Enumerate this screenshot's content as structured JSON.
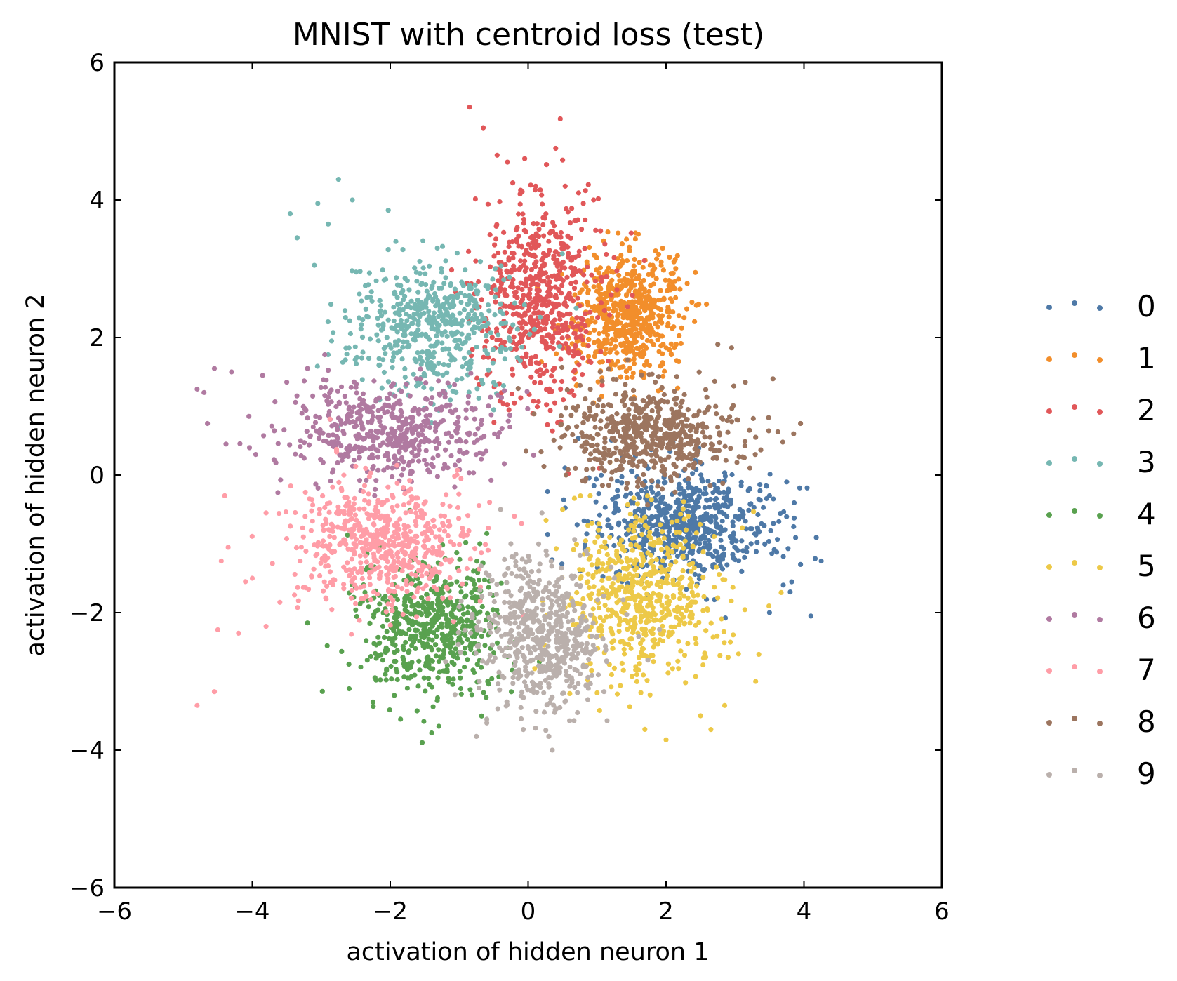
{
  "chart_data": {
    "type": "scatter",
    "title": "MNIST with centroid loss (test)",
    "xlabel": "activation of hidden neuron 1",
    "ylabel": "activation of hidden neuron 2",
    "xlim": [
      -6,
      6
    ],
    "ylim": [
      -6,
      6
    ],
    "xticks": [
      -6,
      -4,
      -2,
      0,
      2,
      4,
      6
    ],
    "yticks": [
      -6,
      -4,
      -2,
      0,
      2,
      4,
      6
    ],
    "xtick_labels": [
      "−6",
      "−4",
      "−2",
      "0",
      "2",
      "4",
      "6"
    ],
    "ytick_labels": [
      "−6",
      "−4",
      "−2",
      "0",
      "2",
      "4",
      "6"
    ],
    "grid": false,
    "legend_position": "right",
    "series": [
      {
        "name": "0",
        "color": "#4e79a7",
        "center": [
          2.25,
          -0.7
        ],
        "spread": [
          0.65,
          0.38
        ],
        "count": 650,
        "outliers": [
          [
            4.1,
            -2.05
          ],
          [
            3.8,
            -1.7
          ],
          [
            3.95,
            -1.3
          ],
          [
            4.25,
            -1.25
          ],
          [
            3.75,
            -0.1
          ],
          [
            3.5,
            -0.3
          ],
          [
            3.85,
            -0.75
          ],
          [
            3.7,
            -1.6
          ],
          [
            3.5,
            -2.0
          ]
        ]
      },
      {
        "name": "1",
        "color": "#f28e2b",
        "center": [
          1.45,
          2.35
        ],
        "spread": [
          0.38,
          0.45
        ],
        "count": 620,
        "outliers": [
          [
            1.95,
            3.3
          ],
          [
            2.1,
            2.75
          ],
          [
            0.7,
            1.3
          ],
          [
            0.95,
            1.05
          ],
          [
            1.3,
            1.65
          ]
        ]
      },
      {
        "name": "2",
        "color": "#e15759",
        "center": [
          0.15,
          2.6
        ],
        "spread": [
          0.45,
          0.75
        ],
        "count": 620,
        "outliers": [
          [
            -0.85,
            5.35
          ],
          [
            -0.65,
            5.05
          ],
          [
            -0.45,
            4.65
          ],
          [
            -0.3,
            4.55
          ],
          [
            -0.05,
            4.6
          ],
          [
            0.4,
            4.75
          ],
          [
            0.5,
            4.58
          ],
          [
            0.8,
            3.95
          ],
          [
            0.95,
            4.0
          ],
          [
            1.05,
            3.55
          ],
          [
            0.7,
            3.7
          ]
        ]
      },
      {
        "name": "3",
        "color": "#76b7b2",
        "center": [
          -1.4,
          2.2
        ],
        "spread": [
          0.6,
          0.5
        ],
        "count": 520,
        "outliers": [
          [
            -2.75,
            4.3
          ],
          [
            -3.05,
            3.95
          ],
          [
            -3.45,
            3.8
          ],
          [
            -2.55,
            4.0
          ],
          [
            -3.35,
            3.45
          ],
          [
            -2.9,
            3.65
          ],
          [
            -3.1,
            3.05
          ],
          [
            -2.85,
            1.95
          ],
          [
            -2.9,
            1.75
          ],
          [
            -0.5,
            0.95
          ]
        ]
      },
      {
        "name": "4",
        "color": "#59a14f",
        "center": [
          -1.4,
          -2.2
        ],
        "spread": [
          0.5,
          0.5
        ],
        "count": 580,
        "outliers": [
          [
            -1.4,
            -3.75
          ],
          [
            -1.85,
            -3.55
          ],
          [
            -2.25,
            -3.3
          ],
          [
            -2.6,
            -2.75
          ],
          [
            -3.2,
            -2.15
          ],
          [
            -0.7,
            -1.0
          ],
          [
            -0.6,
            -0.85
          ]
        ]
      },
      {
        "name": "5",
        "color": "#edc948",
        "center": [
          1.65,
          -1.75
        ],
        "spread": [
          0.55,
          0.6
        ],
        "count": 600,
        "outliers": [
          [
            2.0,
            -3.85
          ],
          [
            2.65,
            -3.7
          ],
          [
            2.85,
            -3.35
          ],
          [
            3.3,
            -3.0
          ],
          [
            2.9,
            -2.65
          ],
          [
            3.05,
            -2.6
          ],
          [
            2.5,
            -3.5
          ],
          [
            0.5,
            -0.5
          ],
          [
            0.9,
            -0.3
          ]
        ]
      },
      {
        "name": "6",
        "color": "#b07aa1",
        "center": [
          -2.0,
          0.65
        ],
        "spread": [
          0.75,
          0.35
        ],
        "count": 520,
        "outliers": [
          [
            -4.8,
            1.25
          ],
          [
            -4.7,
            1.2
          ],
          [
            -4.55,
            1.55
          ],
          [
            -4.3,
            1.5
          ],
          [
            -4.65,
            0.75
          ],
          [
            -3.85,
            1.45
          ],
          [
            -3.5,
            1.35
          ],
          [
            -3.2,
            1.55
          ],
          [
            -3.3,
            0.5
          ],
          [
            -3.95,
            0.3
          ],
          [
            -2.95,
            1.75
          ]
        ]
      },
      {
        "name": "7",
        "color": "#ff9da7",
        "center": [
          -2.1,
          -1.0
        ],
        "spread": [
          0.65,
          0.45
        ],
        "count": 600,
        "outliers": [
          [
            -4.8,
            -3.35
          ],
          [
            -4.55,
            -3.15
          ],
          [
            -4.5,
            -2.25
          ],
          [
            -4.2,
            -2.3
          ],
          [
            -4.45,
            -1.25
          ],
          [
            -4.35,
            -1.05
          ],
          [
            -4.1,
            -1.55
          ],
          [
            -4.0,
            -1.5
          ],
          [
            -3.8,
            -2.2
          ],
          [
            -3.6,
            -1.85
          ],
          [
            -4.4,
            -0.3
          ],
          [
            -3.8,
            -0.55
          ]
        ]
      },
      {
        "name": "8",
        "color": "#9c755f",
        "center": [
          1.75,
          0.6
        ],
        "spread": [
          0.65,
          0.35
        ],
        "count": 560,
        "outliers": [
          [
            2.75,
            1.9
          ],
          [
            2.95,
            1.85
          ],
          [
            3.55,
            1.4
          ],
          [
            3.15,
            1.35
          ],
          [
            3.95,
            0.75
          ],
          [
            3.85,
            0.6
          ],
          [
            3.3,
            0.55
          ],
          [
            0.55,
            0.0
          ]
        ]
      },
      {
        "name": "9",
        "color": "#bab0ac",
        "center": [
          0.2,
          -2.35
        ],
        "spread": [
          0.45,
          0.55
        ],
        "count": 580,
        "outliers": [
          [
            0.35,
            -4.0
          ],
          [
            0.3,
            -3.8
          ],
          [
            -0.75,
            -3.8
          ],
          [
            -0.6,
            -3.55
          ],
          [
            1.1,
            -3.15
          ],
          [
            0.85,
            -3.05
          ],
          [
            -0.25,
            -1.0
          ],
          [
            -0.4,
            -0.5
          ],
          [
            0.2,
            -0.55
          ]
        ]
      }
    ]
  }
}
